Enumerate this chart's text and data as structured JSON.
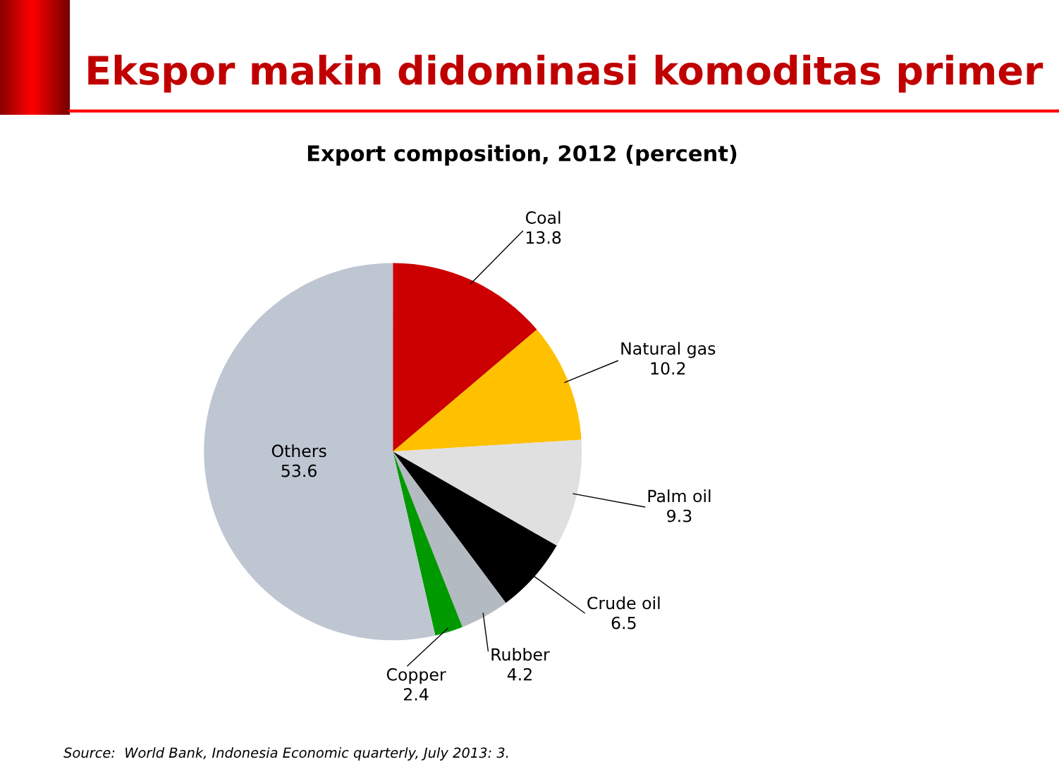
{
  "chart_data": {
    "type": "pie",
    "title": "Ekspor makin didominasi komoditas primer",
    "subtitle": "Export composition, 2012 (percent)",
    "categories": [
      "Coal",
      "Natural gas",
      "Palm oil",
      "Crude oil",
      "Rubber",
      "Copper",
      "Others"
    ],
    "values": [
      13.8,
      10.2,
      9.3,
      6.5,
      4.2,
      2.4,
      53.6
    ],
    "colors": [
      "#cc0000",
      "#ffc000",
      "#e0e0e0",
      "#000000",
      "#b4bac2",
      "#009900",
      "#bec6d2"
    ],
    "data_labels": true,
    "legend": false,
    "annotations": [
      "Source:  World Bank, Indonesia Economic quarterly, July 2013: 3."
    ]
  }
}
